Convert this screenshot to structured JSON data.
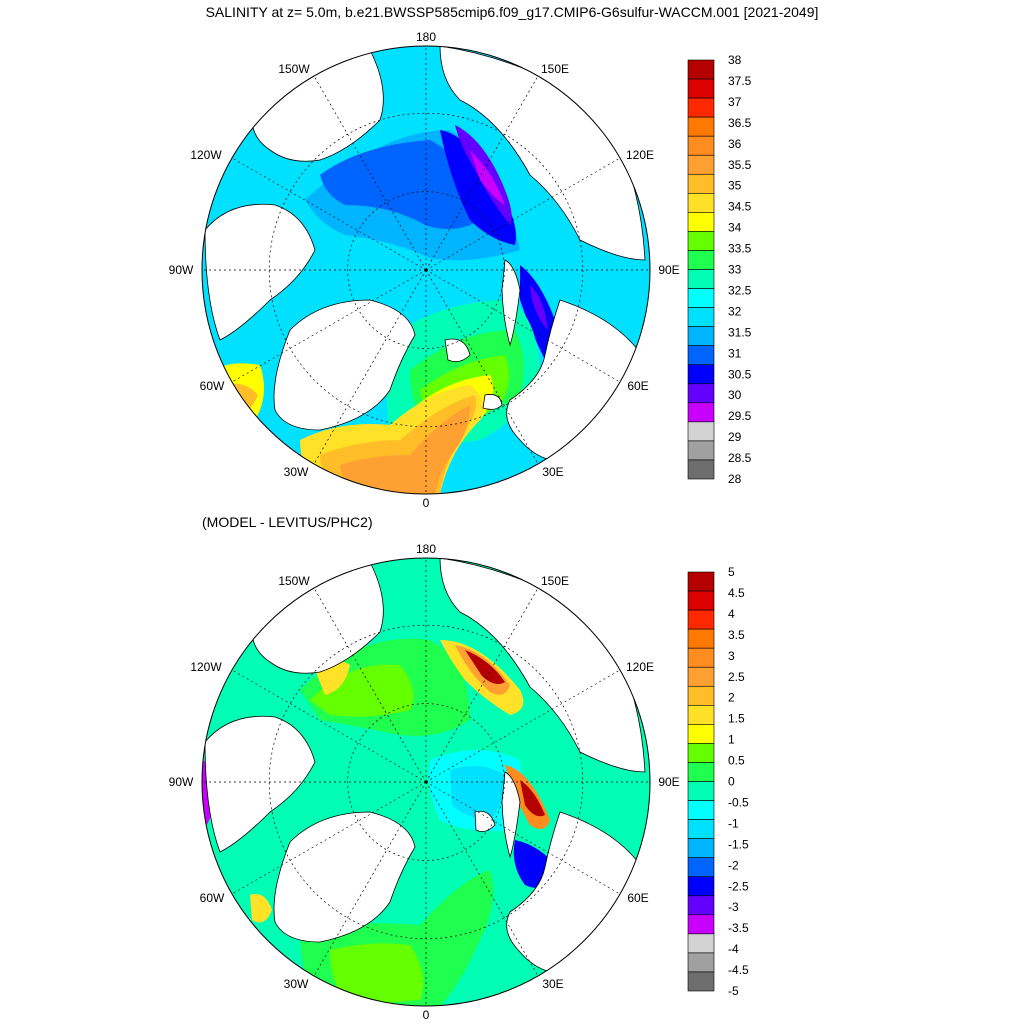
{
  "title": "SALINITY at z=   5.0m, b.e21.BWSSP585cmip6.f09_g17.CMIP6-G6sulfur-WACCM.001 [2021-2049]",
  "subtitle": "(MODEL - LEVITUS/PHC2)",
  "lon_labels": {
    "top": "180",
    "top_right": "150E",
    "right_upper": "120E",
    "right": "90E",
    "right_lower": "60E",
    "bottom_right": "30E",
    "bottom": "0",
    "bottom_left": "30W",
    "left_lower": "60W",
    "left": "90W",
    "left_upper": "120W",
    "top_left": "150W"
  },
  "colors": {
    "land": "#ffffff",
    "coast": "#000000"
  },
  "chart_data": [
    {
      "type": "map",
      "panel": "salinity",
      "colorbar": {
        "labels": [
          "38",
          "37.5",
          "37",
          "36.5",
          "36",
          "35.5",
          "35",
          "34.5",
          "34",
          "33.5",
          "33",
          "32.5",
          "32",
          "31.5",
          "31",
          "30.5",
          "30",
          "29.5",
          "29",
          "28.5",
          "28"
        ],
        "colors": [
          "#b40000",
          "#dc0000",
          "#ff2800",
          "#ff7800",
          "#ff8c1e",
          "#ffa032",
          "#ffbe28",
          "#ffe128",
          "#ffff00",
          "#64ff00",
          "#1eff50",
          "#00ffb4",
          "#00ffff",
          "#00e1ff",
          "#00b4ff",
          "#0064ff",
          "#0000ff",
          "#6400ff",
          "#c800ff",
          "#d2d2d2",
          "#a0a0a0",
          "#6e6e6e"
        ]
      }
    },
    {
      "type": "map",
      "panel": "difference",
      "colorbar": {
        "labels": [
          "5",
          "4.5",
          "4",
          "3.5",
          "3",
          "2.5",
          "2",
          "1.5",
          "1",
          "0.5",
          "0",
          "-0.5",
          "-1",
          "-1.5",
          "-2",
          "-2.5",
          "-3",
          "-3.5",
          "-4",
          "-4.5",
          "-5"
        ],
        "colors": [
          "#b40000",
          "#dc0000",
          "#ff2800",
          "#ff7800",
          "#ff8c1e",
          "#ffa032",
          "#ffbe28",
          "#ffe128",
          "#ffff00",
          "#64ff00",
          "#1eff50",
          "#00ffb4",
          "#00ffff",
          "#00e1ff",
          "#00b4ff",
          "#0064ff",
          "#0000ff",
          "#6400ff",
          "#c800ff",
          "#d2d2d2",
          "#a0a0a0",
          "#6e6e6e"
        ]
      }
    }
  ]
}
